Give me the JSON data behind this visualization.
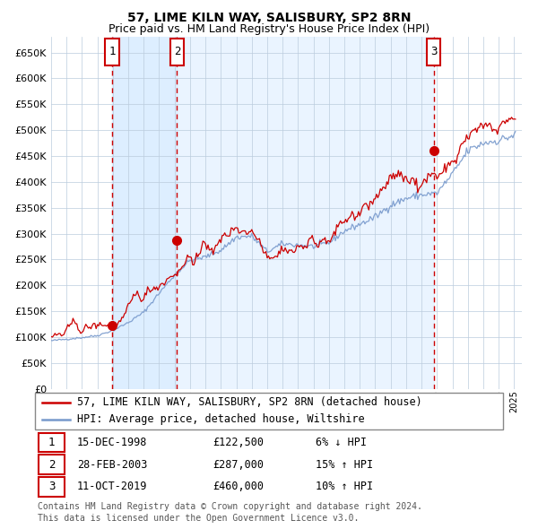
{
  "title": "57, LIME KILN WAY, SALISBURY, SP2 8RN",
  "subtitle": "Price paid vs. HM Land Registry's House Price Index (HPI)",
  "legend_line1": "57, LIME KILN WAY, SALISBURY, SP2 8RN (detached house)",
  "legend_line2": "HPI: Average price, detached house, Wiltshire",
  "footer1": "Contains HM Land Registry data © Crown copyright and database right 2024.",
  "footer2": "This data is licensed under the Open Government Licence v3.0.",
  "transactions": [
    {
      "num": 1,
      "date": "15-DEC-1998",
      "price": 122500,
      "pct": "6%",
      "dir": "↓"
    },
    {
      "num": 2,
      "date": "28-FEB-2003",
      "price": 287000,
      "pct": "15%",
      "dir": "↑"
    },
    {
      "num": 3,
      "date": "11-OCT-2019",
      "price": 460000,
      "pct": "10%",
      "dir": "↑"
    }
  ],
  "sale_dates_decimal": [
    1998.96,
    2003.16,
    2019.78
  ],
  "sale_prices": [
    122500,
    287000,
    460000
  ],
  "hpi_color": "#7799cc",
  "price_color": "#cc0000",
  "sale_color": "#cc0000",
  "shading_color": "#ddeeff",
  "grid_color": "#bbccdd",
  "dashed_line_color": "#cc0000",
  "background_color": "#ffffff",
  "ylim": [
    0,
    680000
  ],
  "yticks": [
    0,
    50000,
    100000,
    150000,
    200000,
    250000,
    300000,
    350000,
    400000,
    450000,
    500000,
    550000,
    600000,
    650000
  ],
  "start_year": 1995,
  "end_year": 2025,
  "title_fontsize": 10,
  "subtitle_fontsize": 9,
  "axis_fontsize": 8,
  "legend_fontsize": 8.5,
  "footer_fontsize": 7
}
